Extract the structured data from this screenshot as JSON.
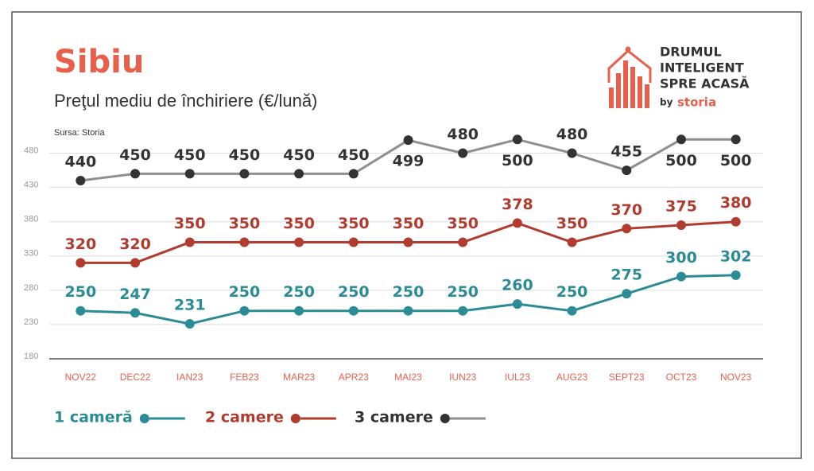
{
  "chart_data": {
    "type": "line",
    "title": "Sibiu",
    "subtitle": "Preţul mediu de închiriere (€/lună)",
    "source": "Sursa: Storia",
    "categories": [
      "NOV22",
      "DEC22",
      "IAN23",
      "FEB23",
      "MAR23",
      "APR23",
      "MAI23",
      "IUN23",
      "IUL23",
      "AUG23",
      "SEPT23",
      "OCT23",
      "NOV23"
    ],
    "series": [
      {
        "name": "1 cameră",
        "color": "#2b8c96",
        "line_color": "#2b8c96",
        "values": [
          250,
          247,
          231,
          250,
          250,
          250,
          250,
          250,
          260,
          250,
          275,
          300,
          302
        ]
      },
      {
        "name": "2 camere",
        "color": "#b13b2f",
        "line_color": "#b13b2f",
        "values": [
          320,
          320,
          350,
          350,
          350,
          350,
          350,
          350,
          378,
          350,
          370,
          375,
          380
        ]
      },
      {
        "name": "3 camere",
        "color": "#333333",
        "line_color": "#8e8e93",
        "values": [
          440,
          450,
          450,
          450,
          450,
          450,
          499,
          480,
          500,
          480,
          455,
          500,
          500
        ]
      }
    ],
    "ylim": [
      180,
      505
    ],
    "yticks": [
      180,
      230,
      280,
      330,
      380,
      430,
      480
    ],
    "grid": true
  },
  "logo": {
    "lines": [
      "DRUMUL",
      "INTELIGENT",
      "SPRE ACASĂ"
    ],
    "by": "by",
    "brand": "storia"
  }
}
